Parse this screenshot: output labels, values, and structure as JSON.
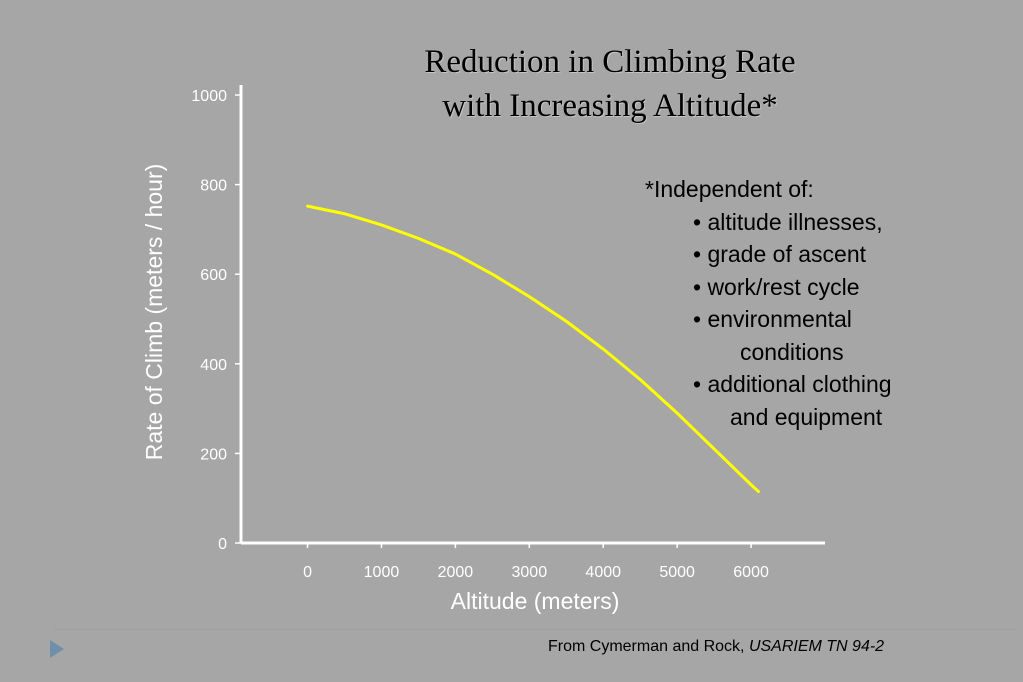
{
  "title_line1": "Reduction in Climbing Rate",
  "title_line2": "with Increasing Altitude*",
  "note": {
    "head": "*Independent of:",
    "items": [
      "• altitude illnesses,",
      "• grade of ascent",
      "• work/rest cycle",
      "• environmental",
      "conditions",
      "• additional clothing",
      "and equipment"
    ]
  },
  "source": {
    "prefix": "From Cymerman and Rock, ",
    "italic": "USARIEM TN 94-2"
  },
  "colors": {
    "background": "#a6a6a6",
    "line": "#ffff00",
    "axis": "#ffffff",
    "bullet": "#6f8faa"
  },
  "chart_data": {
    "type": "line",
    "xlabel": "Altitude (meters)",
    "ylabel": "Rate of Climb (meters / hour)",
    "xlim": [
      -900,
      7000
    ],
    "ylim": [
      0,
      1000
    ],
    "x_ticks": [
      0,
      1000,
      2000,
      3000,
      4000,
      5000,
      6000
    ],
    "y_ticks": [
      0,
      200,
      400,
      600,
      800,
      1000
    ],
    "grid": false,
    "series": [
      {
        "x": [
          0,
          500,
          1000,
          1500,
          2000,
          2500,
          3000,
          3500,
          4000,
          4500,
          5000,
          5500,
          6000,
          6100
        ],
        "values": [
          752,
          735,
          710,
          680,
          645,
          600,
          550,
          495,
          433,
          365,
          290,
          210,
          130,
          115
        ]
      }
    ]
  }
}
